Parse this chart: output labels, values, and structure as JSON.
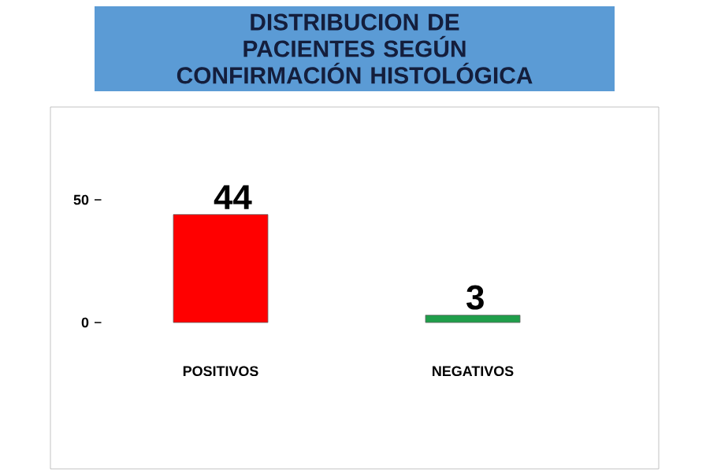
{
  "chart_data": {
    "type": "bar",
    "title": "DISTRIBUCION DE PACIENTES SEGÚN CONFIRMACIÓN HISTOLÓGICA",
    "categories": [
      "POSITIVOS",
      "NEGATIVOS"
    ],
    "values": [
      44,
      3
    ],
    "colors": [
      "#ff0000",
      "#1f9e4a"
    ],
    "ylim": [
      0,
      50
    ],
    "yticks": [
      0,
      50
    ],
    "data_labels": true
  }
}
